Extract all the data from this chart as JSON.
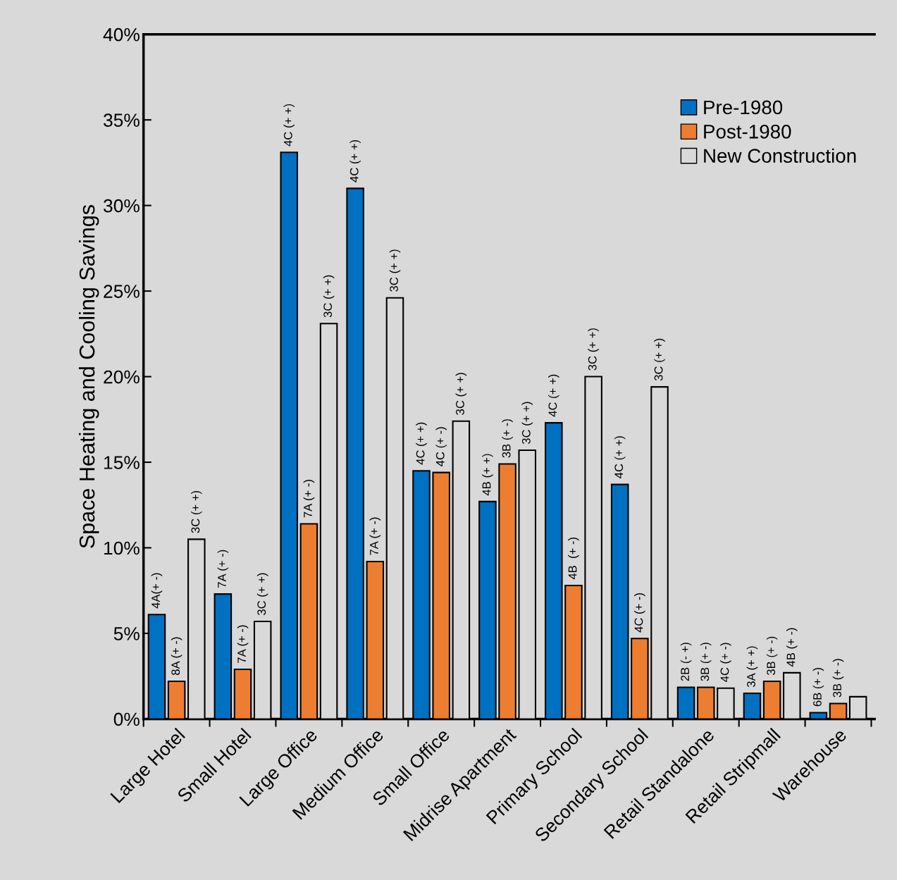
{
  "chart_data": {
    "type": "bar",
    "ylabel": "Space Heating and Cooling Savings",
    "categories": [
      "Large Hotel",
      "Small Hotel",
      "Large Office",
      "Medium Office",
      "Small Office",
      "Midrise Apartment",
      "Primary School",
      "Secondary School",
      "Retail Standalone",
      "Retail Stripmall",
      "Warehouse"
    ],
    "series": [
      {
        "name": "Pre-1980",
        "color": "#0070c0",
        "values": [
          6.1,
          7.3,
          33.1,
          31.0,
          14.5,
          12.7,
          17.3,
          13.7,
          1.85,
          1.5,
          0.37
        ]
      },
      {
        "name": "Post-1980",
        "color": "#ed7d31",
        "values": [
          2.2,
          2.9,
          11.4,
          9.2,
          14.4,
          14.9,
          7.8,
          4.7,
          1.85,
          2.2,
          0.9
        ]
      },
      {
        "name": "New Construction",
        "color": "#d9d9d9",
        "values": [
          10.5,
          5.7,
          23.1,
          24.6,
          17.4,
          15.7,
          20.0,
          19.4,
          1.8,
          2.7,
          1.3
        ]
      }
    ],
    "grid": false,
    "annotations": [
      "4A(+ -)",
      "8A (+ -)",
      "3C (+ +)",
      "7A (+ -)",
      "7A (+ -)",
      "3C (+ +)",
      "4C (+ +)",
      "7A (+ -)",
      "3C (+ +)",
      "4C (+ +)",
      "7A (+ -)",
      "3C (+ +)",
      "4C (+ +)",
      "4C (+ -)",
      "3C (+ +)",
      "4B (+ +)",
      "3B (+ -)",
      "3C (+ +)",
      "4C (+ +)",
      "4B  (+ -)",
      "3C (+ +)",
      "4C (+ +)",
      "4C (+ -)",
      "3C (+ +)",
      "2B (- +)",
      "3B (+ -)",
      "4C (+ -)",
      "3A (+ +)",
      "3B (+ -)",
      "4B (+ -)",
      "6B (+ -)",
      "3B (+ -)"
    ],
    "ylim": [
      0,
      40
    ],
    "yticks": [
      {
        "value": 0,
        "label": "0%"
      },
      {
        "value": 5,
        "label": "5%"
      },
      {
        "value": 10,
        "label": "10%"
      },
      {
        "value": 15,
        "label": "15%"
      },
      {
        "value": 20,
        "label": "20%"
      },
      {
        "value": 25,
        "label": "25%"
      },
      {
        "value": 30,
        "label": "30%"
      },
      {
        "value": 35,
        "label": "35%"
      },
      {
        "value": 40,
        "label": "40%"
      }
    ],
    "legend": "top right"
  }
}
